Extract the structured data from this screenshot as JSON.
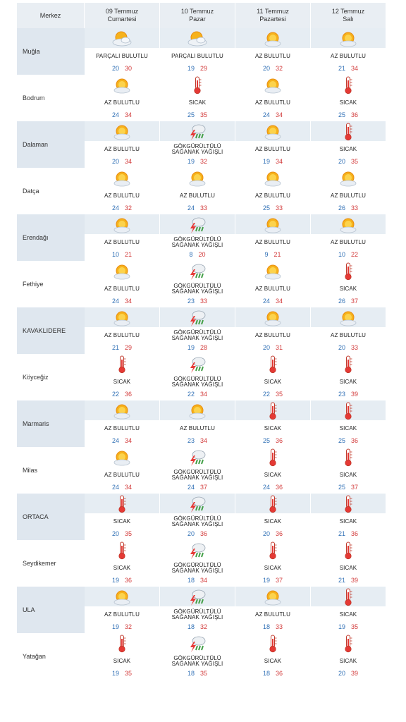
{
  "header": {
    "city_label": "Merkez",
    "days": [
      {
        "date": "09 Temmuz",
        "weekday": "Cumartesi"
      },
      {
        "date": "10 Temmuz",
        "weekday": "Pazar"
      },
      {
        "date": "11 Temmuz",
        "weekday": "Pazartesi"
      },
      {
        "date": "12 Temmuz",
        "weekday": "Salı"
      }
    ]
  },
  "colors": {
    "min": "#2f6fb5",
    "max": "#d23a3a",
    "shade": "#dfe7ef"
  },
  "rows": [
    {
      "city": "Muğla",
      "shaded": true,
      "f": [
        {
          "icon": "partly-cloudy-icon",
          "desc": "PARÇALI BULUTLU",
          "min": "20",
          "max": "30"
        },
        {
          "icon": "partly-cloudy-icon",
          "desc": "PARÇALI BULUTLU",
          "min": "19",
          "max": "29"
        },
        {
          "icon": "sun-cloud-icon",
          "desc": "AZ BULUTLU",
          "min": "20",
          "max": "32"
        },
        {
          "icon": "sun-cloud-icon",
          "desc": "AZ BULUTLU",
          "min": "21",
          "max": "34"
        }
      ]
    },
    {
      "city": "Bodrum",
      "shaded": false,
      "f": [
        {
          "icon": "sun-cloud-icon",
          "desc": "AZ BULUTLU",
          "min": "24",
          "max": "34"
        },
        {
          "icon": "thermometer-icon",
          "desc": "SICAK",
          "min": "25",
          "max": "35"
        },
        {
          "icon": "sun-cloud-icon",
          "desc": "AZ BULUTLU",
          "min": "24",
          "max": "34"
        },
        {
          "icon": "thermometer-icon",
          "desc": "SICAK",
          "min": "25",
          "max": "36"
        }
      ]
    },
    {
      "city": "Dalaman",
      "shaded": true,
      "f": [
        {
          "icon": "sun-cloud-icon",
          "desc": "AZ BULUTLU",
          "min": "20",
          "max": "34"
        },
        {
          "icon": "thunderstorm-icon",
          "desc": "GÖKGÜRÜLTÜLÜ SAĞANAK YAĞIŞLI",
          "min": "19",
          "max": "32"
        },
        {
          "icon": "sun-cloud-icon",
          "desc": "AZ BULUTLU",
          "min": "19",
          "max": "34"
        },
        {
          "icon": "thermometer-icon",
          "desc": "SICAK",
          "min": "20",
          "max": "35"
        }
      ]
    },
    {
      "city": "Datça",
      "shaded": false,
      "f": [
        {
          "icon": "sun-cloud-icon",
          "desc": "AZ BULUTLU",
          "min": "24",
          "max": "32"
        },
        {
          "icon": "sun-cloud-icon",
          "desc": "AZ BULUTLU",
          "min": "24",
          "max": "33"
        },
        {
          "icon": "sun-cloud-icon",
          "desc": "AZ BULUTLU",
          "min": "25",
          "max": "33"
        },
        {
          "icon": "sun-cloud-icon",
          "desc": "AZ BULUTLU",
          "min": "26",
          "max": "33"
        }
      ]
    },
    {
      "city": "Erendağı",
      "shaded": true,
      "f": [
        {
          "icon": "sun-cloud-icon",
          "desc": "AZ BULUTLU",
          "min": "10",
          "max": "21"
        },
        {
          "icon": "thunderstorm-icon",
          "desc": "GÖKGÜRÜLTÜLÜ SAĞANAK YAĞIŞLI",
          "min": "8",
          "max": "20"
        },
        {
          "icon": "sun-cloud-icon",
          "desc": "AZ BULUTLU",
          "min": "9",
          "max": "21"
        },
        {
          "icon": "sun-cloud-icon",
          "desc": "AZ BULUTLU",
          "min": "10",
          "max": "22"
        }
      ]
    },
    {
      "city": "Fethiye",
      "shaded": false,
      "f": [
        {
          "icon": "sun-cloud-icon",
          "desc": "AZ BULUTLU",
          "min": "24",
          "max": "34"
        },
        {
          "icon": "thunderstorm-icon",
          "desc": "GÖKGÜRÜLTÜLÜ SAĞANAK YAĞIŞLI",
          "min": "23",
          "max": "33"
        },
        {
          "icon": "sun-cloud-icon",
          "desc": "AZ BULUTLU",
          "min": "24",
          "max": "34"
        },
        {
          "icon": "thermometer-icon",
          "desc": "SICAK",
          "min": "26",
          "max": "37"
        }
      ]
    },
    {
      "city": "KAVAKLIDERE",
      "shaded": true,
      "f": [
        {
          "icon": "sun-cloud-icon",
          "desc": "AZ BULUTLU",
          "min": "21",
          "max": "29"
        },
        {
          "icon": "thunderstorm-icon",
          "desc": "GÖKGÜRÜLTÜLÜ SAĞANAK YAĞIŞLI",
          "min": "19",
          "max": "28"
        },
        {
          "icon": "sun-cloud-icon",
          "desc": "AZ BULUTLU",
          "min": "20",
          "max": "31"
        },
        {
          "icon": "sun-cloud-icon",
          "desc": "AZ BULUTLU",
          "min": "20",
          "max": "33"
        }
      ]
    },
    {
      "city": "Köyceğiz",
      "shaded": false,
      "f": [
        {
          "icon": "thermometer-icon",
          "desc": "SICAK",
          "min": "22",
          "max": "36"
        },
        {
          "icon": "thunderstorm-icon",
          "desc": "GÖKGÜRÜLTÜLÜ SAĞANAK YAĞIŞLI",
          "min": "22",
          "max": "34"
        },
        {
          "icon": "thermometer-icon",
          "desc": "SICAK",
          "min": "22",
          "max": "35"
        },
        {
          "icon": "thermometer-icon",
          "desc": "SICAK",
          "min": "23",
          "max": "39"
        }
      ]
    },
    {
      "city": "Marmaris",
      "shaded": true,
      "f": [
        {
          "icon": "sun-cloud-icon",
          "desc": "AZ BULUTLU",
          "min": "24",
          "max": "34"
        },
        {
          "icon": "sun-cloud-icon",
          "desc": "AZ BULUTLU",
          "min": "23",
          "max": "34"
        },
        {
          "icon": "thermometer-icon",
          "desc": "SICAK",
          "min": "25",
          "max": "36"
        },
        {
          "icon": "thermometer-icon",
          "desc": "SICAK",
          "min": "25",
          "max": "36"
        }
      ]
    },
    {
      "city": "Milas",
      "shaded": false,
      "f": [
        {
          "icon": "sun-cloud-icon",
          "desc": "AZ BULUTLU",
          "min": "24",
          "max": "34"
        },
        {
          "icon": "thunderstorm-icon",
          "desc": "GÖKGÜRÜLTÜLÜ SAĞANAK YAĞIŞLI",
          "min": "24",
          "max": "37"
        },
        {
          "icon": "thermometer-icon",
          "desc": "SICAK",
          "min": "24",
          "max": "36"
        },
        {
          "icon": "thermometer-icon",
          "desc": "SICAK",
          "min": "25",
          "max": "37"
        }
      ]
    },
    {
      "city": "ORTACA",
      "shaded": true,
      "f": [
        {
          "icon": "thermometer-icon",
          "desc": "SICAK",
          "min": "20",
          "max": "35"
        },
        {
          "icon": "thunderstorm-icon",
          "desc": "GÖKGÜRÜLTÜLÜ SAĞANAK YAĞIŞLI",
          "min": "20",
          "max": "36"
        },
        {
          "icon": "thermometer-icon",
          "desc": "SICAK",
          "min": "20",
          "max": "36"
        },
        {
          "icon": "thermometer-icon",
          "desc": "SICAK",
          "min": "21",
          "max": "36"
        }
      ]
    },
    {
      "city": "Seydikemer",
      "shaded": false,
      "f": [
        {
          "icon": "thermometer-icon",
          "desc": "SICAK",
          "min": "19",
          "max": "36"
        },
        {
          "icon": "thunderstorm-icon",
          "desc": "GÖKGÜRÜLTÜLÜ SAĞANAK YAĞIŞLI",
          "min": "18",
          "max": "34"
        },
        {
          "icon": "thermometer-icon",
          "desc": "SICAK",
          "min": "19",
          "max": "37"
        },
        {
          "icon": "thermometer-icon",
          "desc": "SICAK",
          "min": "21",
          "max": "39"
        }
      ]
    },
    {
      "city": "ULA",
      "shaded": true,
      "f": [
        {
          "icon": "sun-cloud-icon",
          "desc": "AZ BULUTLU",
          "min": "19",
          "max": "32"
        },
        {
          "icon": "thunderstorm-icon",
          "desc": "GÖKGÜRÜLTÜLÜ SAĞANAK YAĞIŞLI",
          "min": "18",
          "max": "32"
        },
        {
          "icon": "sun-cloud-icon",
          "desc": "AZ BULUTLU",
          "min": "18",
          "max": "33"
        },
        {
          "icon": "thermometer-icon",
          "desc": "SICAK",
          "min": "19",
          "max": "35"
        }
      ]
    },
    {
      "city": "Yatağan",
      "shaded": false,
      "f": [
        {
          "icon": "thermometer-icon",
          "desc": "SICAK",
          "min": "19",
          "max": "35"
        },
        {
          "icon": "thunderstorm-icon",
          "desc": "GÖKGÜRÜLTÜLÜ SAĞANAK YAĞIŞLI",
          "min": "18",
          "max": "35"
        },
        {
          "icon": "thermometer-icon",
          "desc": "SICAK",
          "min": "18",
          "max": "36"
        },
        {
          "icon": "thermometer-icon",
          "desc": "SICAK",
          "min": "20",
          "max": "39"
        }
      ]
    }
  ]
}
